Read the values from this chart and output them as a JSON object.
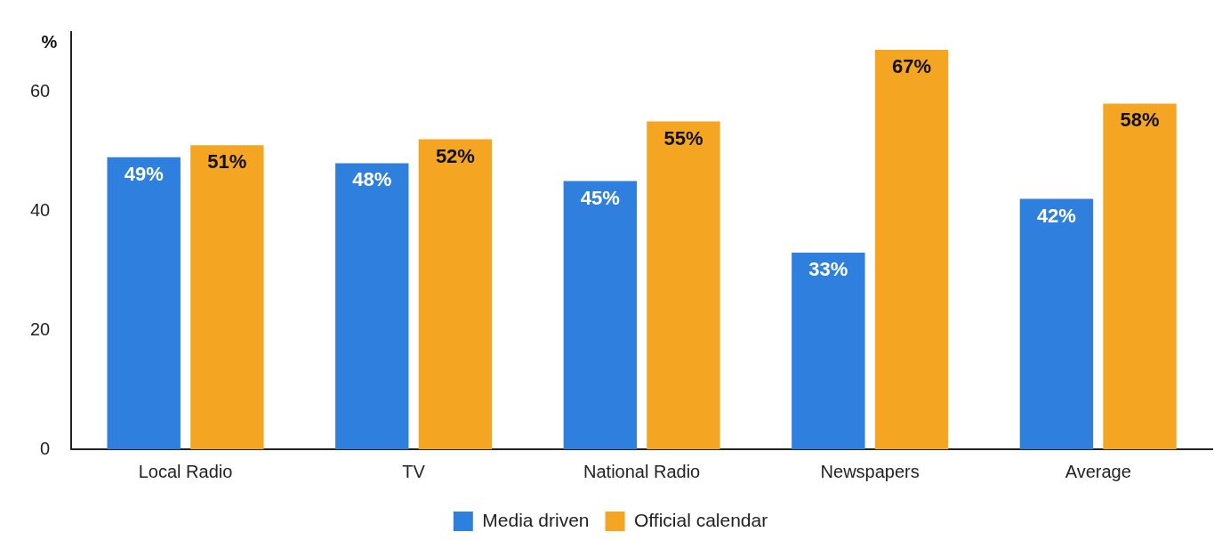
{
  "chart_data": {
    "type": "bar",
    "ylabel": "%",
    "categories": [
      "Local Radio",
      "TV",
      "National Radio",
      "Newspapers",
      "Average"
    ],
    "series": [
      {
        "name": "Media driven",
        "color": "#2f80de",
        "values": [
          49,
          48,
          45,
          33,
          42
        ],
        "value_labels": [
          "49%",
          "48%",
          "45%",
          "33%",
          "42%"
        ]
      },
      {
        "name": "Official calendar",
        "color": "#f4a623",
        "values": [
          51,
          52,
          55,
          67,
          58
        ],
        "value_labels": [
          "51%",
          "52%",
          "55%",
          "67%",
          "58%"
        ]
      }
    ],
    "ylim": [
      0,
      70
    ],
    "yticks": [
      0,
      20,
      40,
      60
    ],
    "grid": false,
    "legend": "bottom"
  }
}
